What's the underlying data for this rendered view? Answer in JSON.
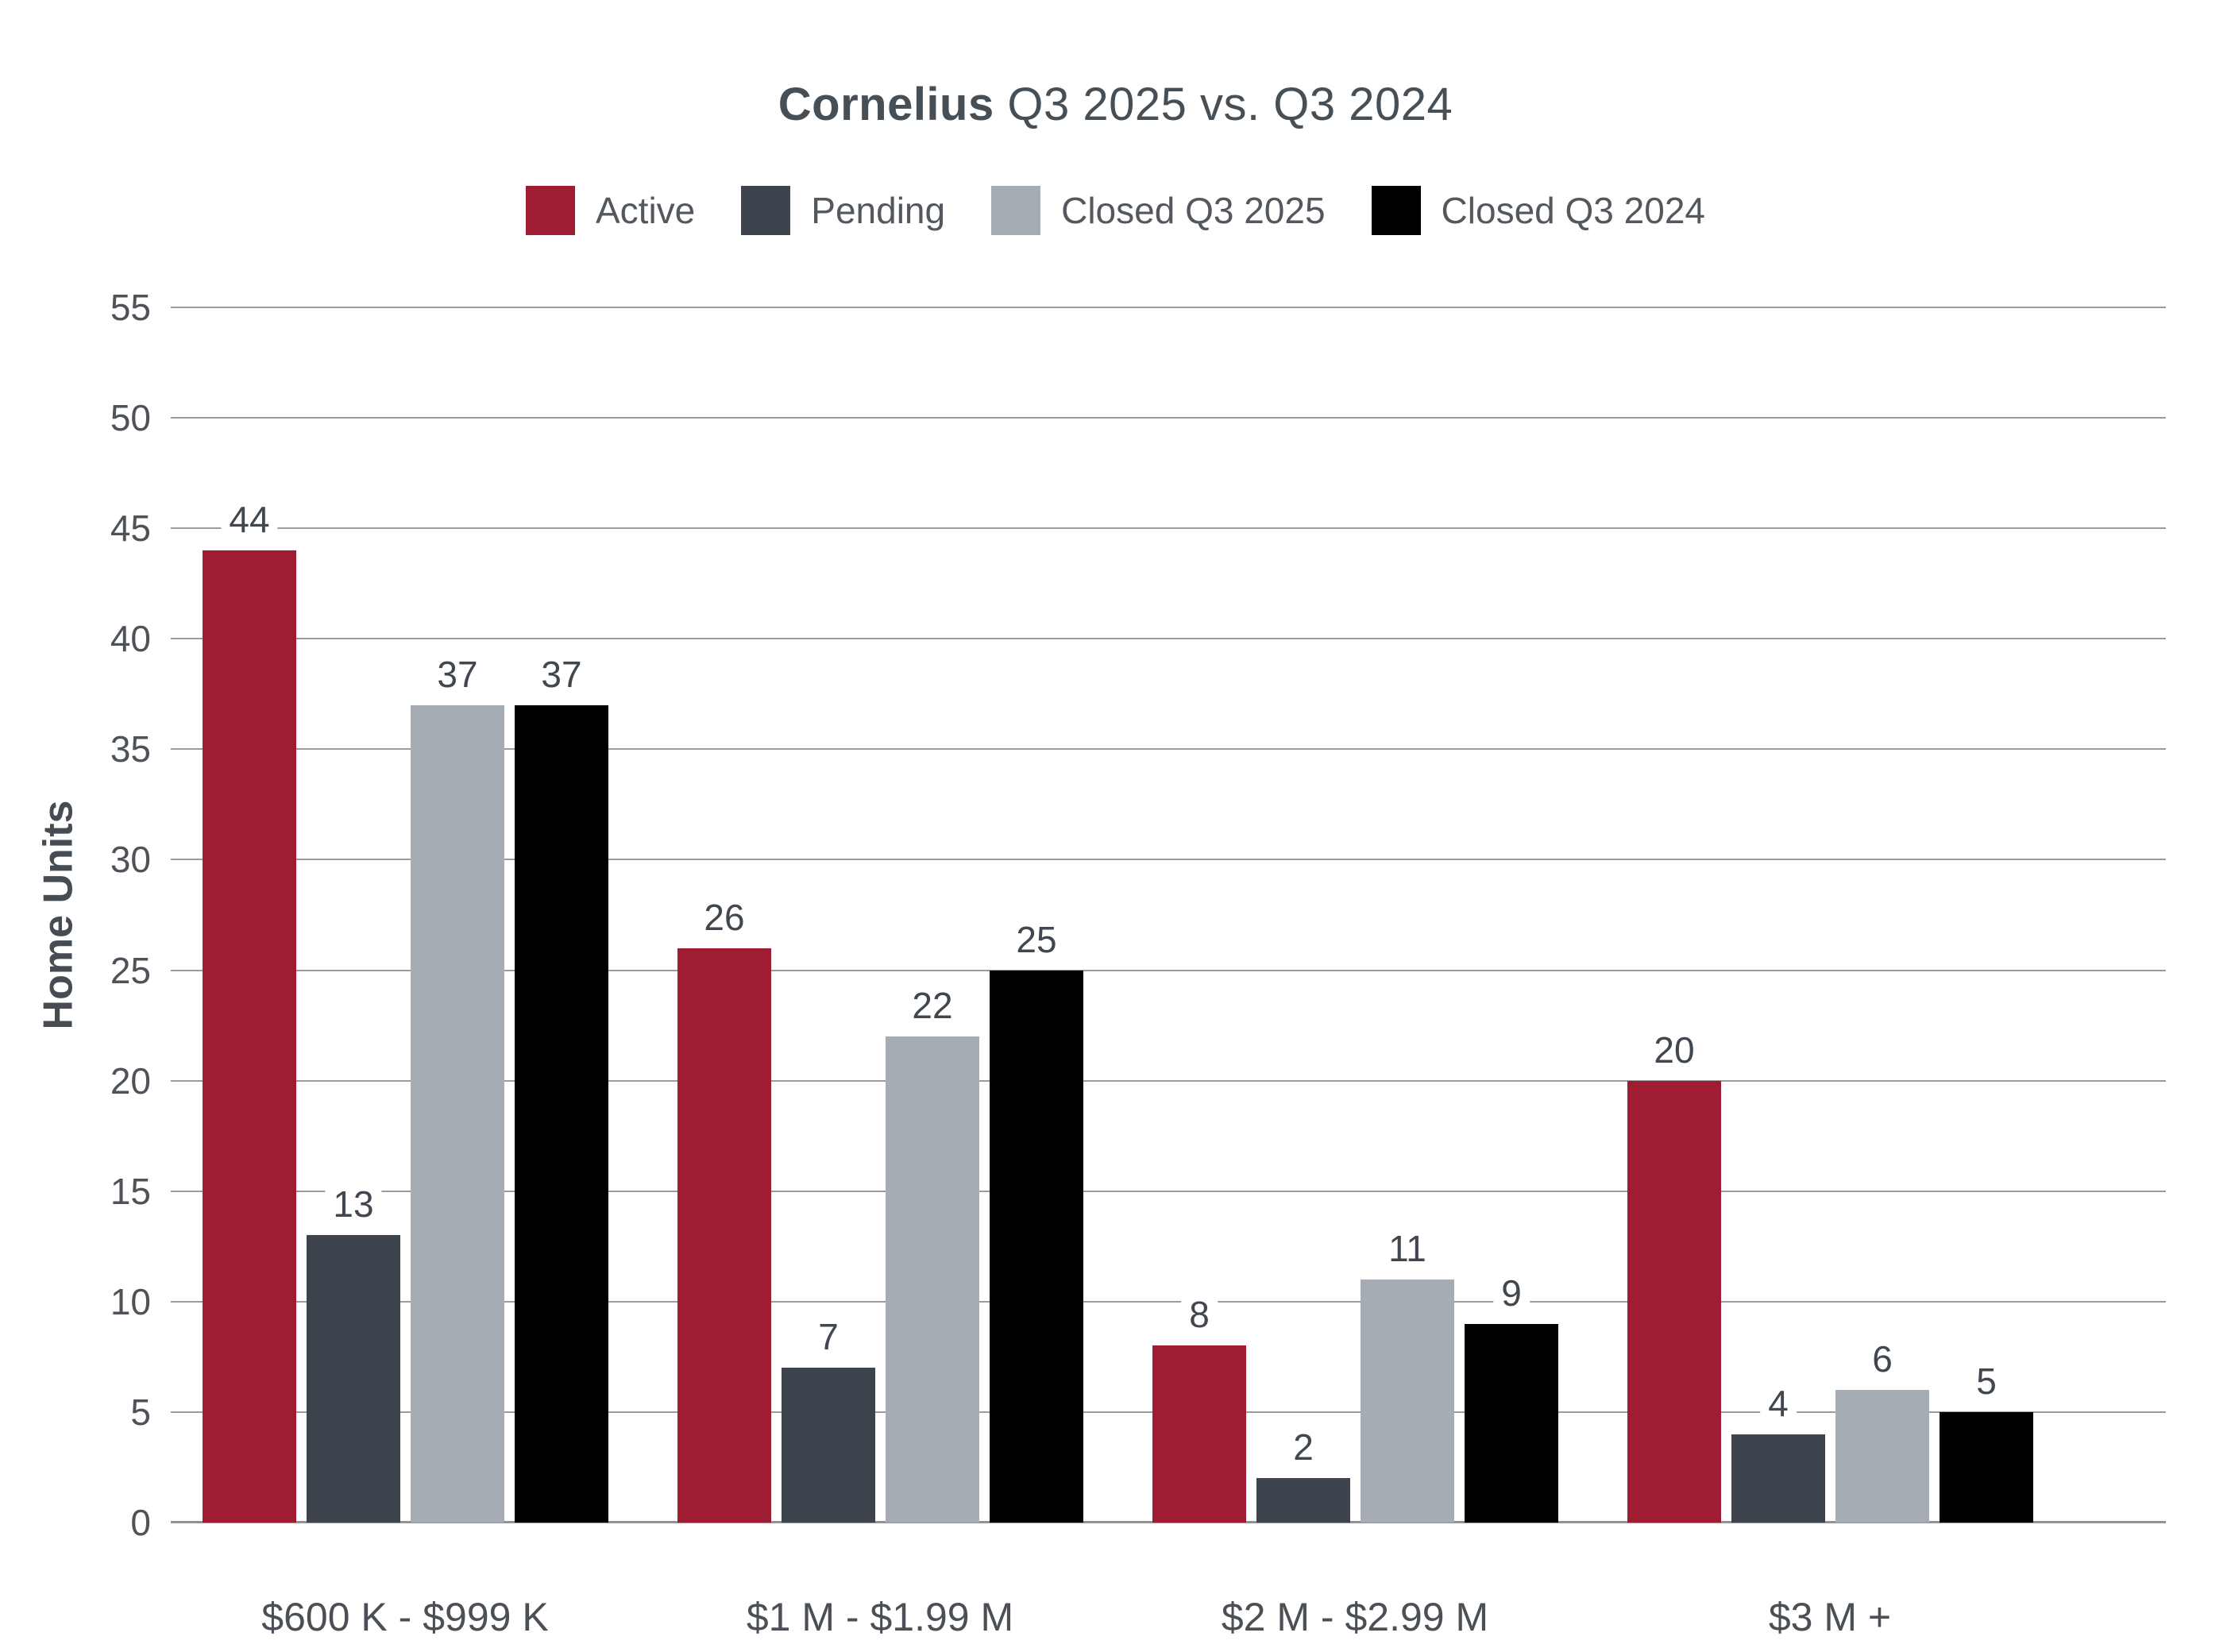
{
  "title": {
    "bold": "Cornelius",
    "rest": " Q3 2025 vs. Q3 2024"
  },
  "y_axis": {
    "label": "Home Units",
    "ticks": [
      0,
      5,
      10,
      15,
      20,
      25,
      30,
      35,
      40,
      45,
      50,
      55
    ]
  },
  "colors": {
    "active": "#9E1D33",
    "pending": "#3E444D",
    "closed_q3_2025": "#A5ACB3",
    "closed_q3_2024": "#000000",
    "gridline": "#9B9B9B",
    "text": "#4A5056"
  },
  "chart_data": {
    "type": "bar",
    "title": "Cornelius Q3 2025 vs. Q3 2024",
    "categories": [
      "$600 K - $999 K",
      "$1 M - $1.99 M",
      "$2 M - $2.99 M",
      "$3 M +"
    ],
    "series": [
      {
        "name": "Active",
        "color": "#9E1D33",
        "values": [
          44,
          26,
          8,
          20
        ]
      },
      {
        "name": "Pending",
        "color": "#3E444D",
        "values": [
          13,
          7,
          2,
          4
        ]
      },
      {
        "name": "Closed Q3 2025",
        "color": "#A5ACB3",
        "values": [
          37,
          22,
          11,
          6
        ]
      },
      {
        "name": "Closed Q3 2024",
        "color": "#000000",
        "values": [
          37,
          25,
          9,
          5
        ]
      }
    ],
    "xlabel": "",
    "ylabel": "Home Units",
    "ylim": [
      0,
      55
    ],
    "ytick_step": 5,
    "grid": true,
    "legend_position": "top",
    "value_labels": true
  }
}
